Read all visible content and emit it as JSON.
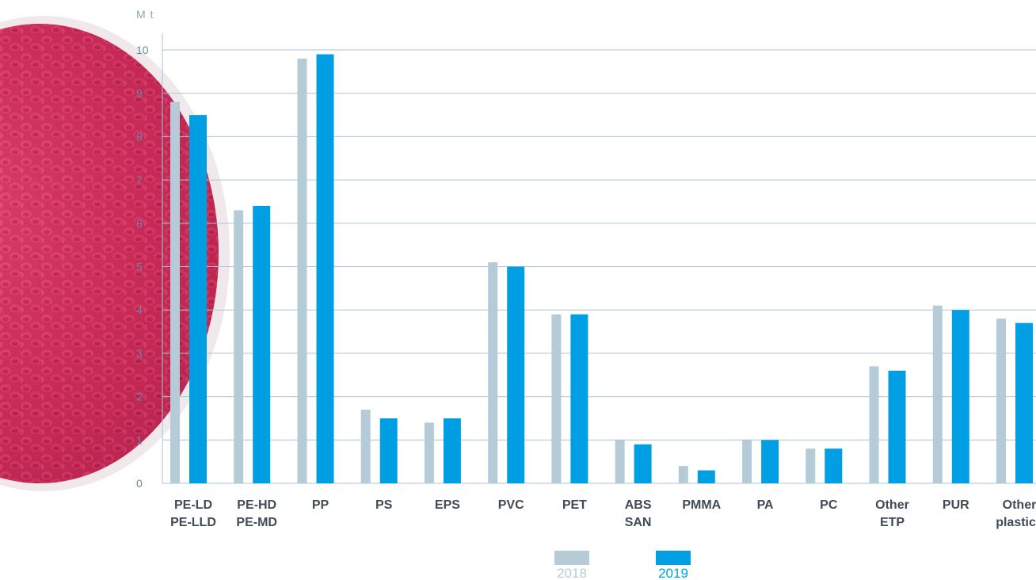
{
  "chart_data": {
    "type": "bar",
    "y_unit": "M t",
    "ylim": [
      0,
      10
    ],
    "y_ticks": [
      "0",
      "1",
      "2",
      "3",
      "4",
      "5",
      "6",
      "7",
      "8",
      "9",
      "10"
    ],
    "grid": true,
    "legend_position": "bottom-center",
    "categories": [
      [
        "PE-LD",
        "PE-LLD"
      ],
      [
        "PE-HD",
        "PE-MD"
      ],
      [
        "PP"
      ],
      [
        "PS"
      ],
      [
        "EPS"
      ],
      [
        "PVC"
      ],
      [
        "PET"
      ],
      [
        "ABS",
        "SAN"
      ],
      [
        "PMMA"
      ],
      [
        "PA"
      ],
      [
        "PC"
      ],
      [
        "Other",
        "ETP"
      ],
      [
        "PUR"
      ],
      [
        "Other",
        "plastics"
      ]
    ],
    "series": [
      {
        "name": "2018",
        "color": "#b5cbd7",
        "values": [
          8.8,
          6.3,
          9.8,
          1.7,
          1.4,
          5.1,
          3.9,
          1.0,
          0.4,
          1.0,
          0.8,
          2.7,
          4.1,
          3.8
        ]
      },
      {
        "name": "2019",
        "color": "#009fe3",
        "values": [
          8.5,
          6.4,
          9.9,
          1.5,
          1.5,
          5.0,
          3.9,
          0.9,
          0.3,
          1.0,
          0.8,
          2.6,
          4.0,
          3.7
        ]
      }
    ]
  }
}
